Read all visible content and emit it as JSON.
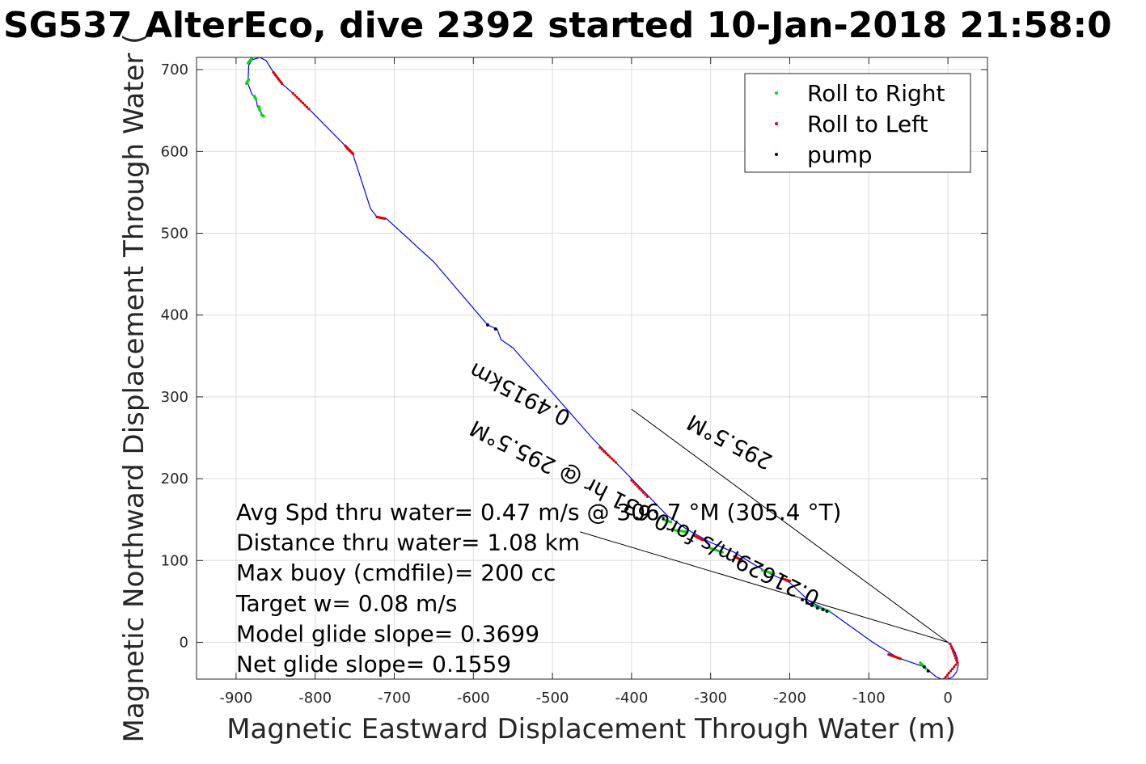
{
  "chart_data": {
    "type": "line",
    "title": "SG537 AlterEco, dive 2392 started 10-Jan-2018 21:58:0",
    "xlabel": "Magnetic Eastward Displacement Through Water (m)",
    "ylabel": "Magnetic Northward Displacement Through Water (",
    "xlim": [
      -950,
      50
    ],
    "ylim": [
      -45,
      715
    ],
    "xticks": [
      -900,
      -800,
      -700,
      -600,
      -500,
      -400,
      -300,
      -200,
      -100,
      0
    ],
    "yticks": [
      0,
      100,
      200,
      300,
      400,
      500,
      600,
      700
    ],
    "xtick_labels": [
      "-900",
      "-800",
      "-700",
      "-600",
      "-500",
      "-400",
      "-300",
      "-200",
      "-100",
      "0"
    ],
    "ytick_labels": [
      "0",
      "100",
      "200",
      "300",
      "400",
      "500",
      "600",
      "700"
    ],
    "grid": true,
    "legend_position": "top-right",
    "legend": [
      "Roll to Right",
      "Roll to Left",
      "pump"
    ],
    "colors": {
      "track": "#0000ff",
      "roll_right": "#00dd00",
      "roll_left": "#e00000",
      "pump": "#000044",
      "arrow": "#000000",
      "grid": "#dddddd",
      "axis": "#262626"
    },
    "track": [
      [
        0,
        0
      ],
      [
        5,
        -5
      ],
      [
        9,
        -12
      ],
      [
        12,
        -20
      ],
      [
        13,
        -28
      ],
      [
        11,
        -36
      ],
      [
        6,
        -42
      ],
      [
        0,
        -45
      ],
      [
        -8,
        -45
      ],
      [
        -15,
        -42
      ],
      [
        -30,
        -30
      ],
      [
        -45,
        -25
      ],
      [
        -60,
        -20
      ],
      [
        -70,
        -15
      ],
      [
        -95,
        0
      ],
      [
        -150,
        38
      ],
      [
        -175,
        50
      ],
      [
        -200,
        73
      ],
      [
        -225,
        84
      ],
      [
        -245,
        95
      ],
      [
        -270,
        110
      ],
      [
        -300,
        122
      ],
      [
        -330,
        138
      ],
      [
        -355,
        155
      ],
      [
        -380,
        180
      ],
      [
        -400,
        200
      ],
      [
        -420,
        220
      ],
      [
        -450,
        250
      ],
      [
        -500,
        305
      ],
      [
        -550,
        360
      ],
      [
        -565,
        370
      ],
      [
        -570,
        383
      ],
      [
        -582,
        388
      ],
      [
        -650,
        465
      ],
      [
        -710,
        518
      ],
      [
        -722,
        520
      ],
      [
        -730,
        530
      ],
      [
        -752,
        596
      ],
      [
        -760,
        603
      ],
      [
        -762,
        607
      ],
      [
        -808,
        652
      ],
      [
        -828,
        671
      ],
      [
        -842,
        683
      ],
      [
        -853,
        697
      ],
      [
        -862,
        711
      ],
      [
        -870,
        715
      ],
      [
        -880,
        712
      ],
      [
        -884,
        705
      ],
      [
        -885,
        683
      ],
      [
        -880,
        670
      ],
      [
        -875,
        665
      ],
      [
        -873,
        655
      ],
      [
        -870,
        650
      ],
      [
        -865,
        643
      ]
    ],
    "roll_right_segments": [
      [
        [
          -35,
          -25
        ],
        [
          -28,
          -32
        ]
      ],
      [
        [
          -170,
          45
        ],
        [
          -150,
          38
        ]
      ],
      [
        [
          -235,
          88
        ],
        [
          -220,
          84
        ]
      ],
      [
        [
          -300,
          115
        ],
        [
          -285,
          110
        ]
      ],
      [
        [
          -345,
          137
        ],
        [
          -330,
          135
        ]
      ],
      [
        [
          -360,
          150
        ],
        [
          -350,
          147
        ]
      ],
      [
        [
          -885,
          708
        ],
        [
          -880,
          714
        ]
      ],
      [
        [
          -887,
          683
        ],
        [
          -884,
          688
        ]
      ],
      [
        [
          -877,
          668
        ],
        [
          -875,
          664
        ]
      ],
      [
        [
          -871,
          655
        ],
        [
          -870,
          650
        ]
      ],
      [
        [
          -868,
          645
        ],
        [
          -865,
          643
        ]
      ]
    ],
    "roll_left_segments": [
      [
        [
          3,
          -2
        ],
        [
          12,
          -25
        ]
      ],
      [
        [
          12,
          -25
        ],
        [
          -5,
          -45
        ]
      ],
      [
        [
          -60,
          -20
        ],
        [
          -75,
          -15
        ]
      ],
      [
        [
          -200,
          75
        ],
        [
          -210,
          78
        ]
      ],
      [
        [
          -260,
          100
        ],
        [
          -270,
          105
        ]
      ],
      [
        [
          -310,
          125
        ],
        [
          -320,
          130
        ]
      ],
      [
        [
          -380,
          178
        ],
        [
          -400,
          198
        ]
      ],
      [
        [
          -420,
          220
        ],
        [
          -440,
          238
        ]
      ],
      [
        [
          -722,
          520
        ],
        [
          -712,
          518
        ]
      ],
      [
        [
          -762,
          607
        ],
        [
          -752,
          597
        ]
      ],
      [
        [
          -808,
          652
        ],
        [
          -828,
          671
        ]
      ],
      [
        [
          -842,
          683
        ],
        [
          -853,
          697
        ]
      ]
    ],
    "pump_points": [
      [
        -582,
        388
      ],
      [
        -572,
        383
      ],
      [
        -184,
        52
      ],
      [
        -178,
        48
      ],
      [
        -172,
        45
      ],
      [
        -165,
        42
      ],
      [
        -158,
        40
      ],
      [
        -153,
        38
      ],
      [
        -30,
        -30
      ],
      [
        -25,
        -35
      ]
    ],
    "arrows": [
      {
        "from": [
          0,
          0
        ],
        "to": [
          -400,
          285
        ]
      },
      {
        "from": [
          0,
          0
        ],
        "to": [
          -465,
          135
        ]
      }
    ],
    "annotations": [
      {
        "text": "295.5°M",
        "anchor": [
          -220,
          227
        ],
        "rotation": 207.6
      },
      {
        "text": "0.4915km",
        "anchor": [
          -475,
          280
        ],
        "rotation": 207.6
      },
      {
        "text": "0.21629m/s for0.631 hr @ 295.5°M",
        "anchor": [
          -160,
          60
        ],
        "rotation": 206.6
      }
    ],
    "info_lines": [
      "Avg Spd thru water=  0.47 m/s @ 306.7 °M (305.4 °T)",
      "Distance thru water=  1.08 km",
      "Max buoy (cmdfile)= 200 cc",
      "Target w= 0.08 m/s",
      "Model glide slope= 0.3699",
      "Net glide slope= 0.1559"
    ]
  }
}
